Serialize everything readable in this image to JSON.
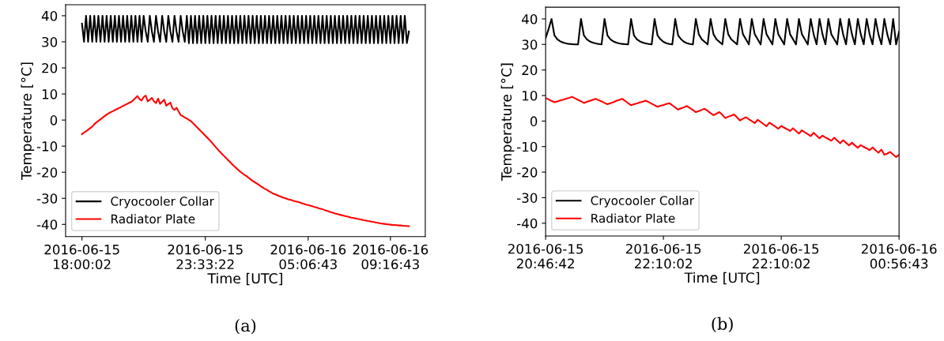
{
  "chart_data": [
    {
      "type": "line",
      "xlabel": "Time [UTC]",
      "ylabel": "Temperature [°C]",
      "annotations": [
        "(a)"
      ],
      "legend": "lower left",
      "grid": false,
      "ylim": [
        -44.7,
        44.2
      ],
      "yticks": [
        -40,
        -30,
        -20,
        -10,
        0,
        10,
        20,
        30,
        40
      ],
      "categories": [
        "2016-06-15\n18:00:02",
        null,
        null,
        null,
        null,
        null,
        null,
        null,
        null,
        null,
        null,
        null,
        null,
        null,
        null,
        null,
        null,
        null,
        null,
        null,
        null,
        null,
        null,
        null,
        null,
        null,
        null,
        null,
        null,
        null,
        null,
        null,
        null,
        null,
        null,
        null,
        null,
        null,
        null,
        null,
        null,
        null,
        null,
        null,
        null,
        null,
        null,
        null,
        null,
        null,
        null,
        null,
        null,
        null,
        null,
        null,
        null,
        null,
        null,
        null,
        "2016-06-15\n23:33:22",
        null,
        null,
        null,
        null,
        null,
        null,
        null,
        null,
        null,
        null,
        null,
        null,
        null,
        null,
        null,
        null,
        null,
        null,
        null,
        null,
        null,
        null,
        null,
        null,
        null,
        null,
        null,
        null,
        null,
        null,
        null,
        null,
        null,
        null,
        null,
        null,
        null,
        null,
        null,
        null,
        null,
        null,
        null,
        null,
        null,
        null,
        null,
        null,
        null,
        "2016-06-16\n05:06:43",
        null,
        null,
        null,
        null,
        null,
        null,
        null,
        null,
        null,
        null,
        null,
        null,
        null,
        null,
        null,
        null,
        null,
        null,
        null,
        null,
        null,
        null,
        null,
        null,
        null,
        null,
        null,
        null,
        null,
        null,
        null,
        null,
        null,
        null,
        null,
        null,
        null,
        null,
        null,
        "2016-06-16\n09:16:43",
        null,
        null,
        null,
        null,
        null,
        null,
        null,
        null,
        null
      ],
      "series": [
        {
          "name": "Cryocooler Collar",
          "color": "#000000",
          "values": [
            37,
            30,
            40,
            30,
            40,
            30,
            40,
            30,
            40,
            30,
            40,
            30,
            40,
            30,
            40,
            30,
            40,
            30,
            40,
            30,
            40,
            30,
            40,
            30,
            40,
            30,
            40,
            30,
            40,
            30,
            40,
            34,
            30,
            40,
            34,
            30,
            40,
            34,
            30,
            40,
            34,
            30,
            40,
            34,
            30,
            40,
            34,
            30,
            40,
            34,
            30,
            40,
            29.5,
            40,
            29.5,
            40,
            29.5,
            40,
            29.5,
            40,
            29.5,
            40,
            29.5,
            40,
            29.5,
            40,
            29.5,
            40,
            29.5,
            40,
            29.5,
            40,
            29.5,
            40,
            29.5,
            40,
            29.5,
            40,
            29.5,
            40,
            29.5,
            40,
            29.5,
            40,
            29.5,
            40,
            29.5,
            40,
            29.5,
            40,
            29.5,
            40,
            29.5,
            40,
            29.5,
            40,
            29.5,
            40,
            29.5,
            40,
            29.5,
            40,
            29.5,
            40,
            29.5,
            40,
            29.5,
            40,
            29.5,
            40,
            29.5,
            40,
            29.5,
            40,
            29.5,
            40,
            29.5,
            40,
            29.5,
            40,
            29.5,
            40,
            29.5,
            40,
            29.5,
            40,
            29.5,
            40,
            29.5,
            40,
            29.5,
            40,
            29.5,
            40,
            29.5,
            40,
            29.5,
            40,
            29.5,
            40,
            29.5,
            40,
            29.5,
            40,
            29.5,
            40,
            29.5,
            40,
            29.5,
            40,
            29.5,
            40,
            29.5,
            40,
            29.5,
            40,
            29.5,
            40,
            29.5,
            34
          ]
        },
        {
          "name": "Radiator Plate",
          "color": "#ff0000",
          "values": [
            -5.4,
            -4.8,
            -4.3,
            -3.7,
            -3.1,
            -2.5,
            -1.6,
            -0.9,
            -0.3,
            0.3,
            0.9,
            1.5,
            2.1,
            2.6,
            3.0,
            3.4,
            3.8,
            4.2,
            4.6,
            5.0,
            5.4,
            5.8,
            6.2,
            6.6,
            7.0,
            7.7,
            8.4,
            9.2,
            8.0,
            7.5,
            8.8,
            9.4,
            7.2,
            7.8,
            8.5,
            7.2,
            6.5,
            8.2,
            6.2,
            7.0,
            7.8,
            5.5,
            6.1,
            6.7,
            4.5,
            3.9,
            4.7,
            3.3,
            1.9,
            1.5,
            1.0,
            0.6,
            0.1,
            -0.4,
            -1.2,
            -2.0,
            -2.8,
            -3.6,
            -4.4,
            -5.2,
            -6.0,
            -6.8,
            -7.6,
            -8.5,
            -9.4,
            -10.3,
            -11.2,
            -12.1,
            -12.9,
            -13.7,
            -14.5,
            -15.3,
            -16.1,
            -16.9,
            -17.7,
            -18.4,
            -19.1,
            -19.8,
            -20.4,
            -21.0,
            -21.5,
            -22.1,
            -22.7,
            -23.3,
            -23.8,
            -24.3,
            -24.8,
            -25.4,
            -25.9,
            -26.4,
            -26.8,
            -27.3,
            -27.7,
            -28.2,
            -28.5,
            -28.8,
            -29.2,
            -29.5,
            -29.8,
            -30.0,
            -30.3,
            -30.5,
            -30.7,
            -31.0,
            -31.2,
            -31.4,
            -31.6,
            -31.9,
            -32.1,
            -32.4,
            -32.6,
            -32.8,
            -33.0,
            -33.3,
            -33.5,
            -33.8,
            -34.0,
            -34.2,
            -34.5,
            -34.8,
            -35.0,
            -35.3,
            -35.5,
            -35.8,
            -36.0,
            -36.2,
            -36.4,
            -36.6,
            -36.8,
            -37.0,
            -37.2,
            -37.4,
            -37.5,
            -37.7,
            -37.9,
            -38.0,
            -38.2,
            -38.4,
            -38.5,
            -38.7,
            -38.8,
            -39.0,
            -39.1,
            -39.3,
            -39.4,
            -39.6,
            -39.7,
            -39.8,
            -39.9,
            -40.0,
            -40.1,
            -40.2,
            -40.2,
            -40.3,
            -40.4,
            -40.4,
            -40.5,
            -40.6,
            -40.6,
            -40.7
          ]
        }
      ]
    },
    {
      "type": "line",
      "xlabel": "Time [UTC]",
      "ylabel": "Temperature [°C]",
      "annotations": [
        "(b)"
      ],
      "legend": "lower left",
      "grid": false,
      "ylim": [
        -45,
        44.6
      ],
      "yticks": [
        -40,
        -30,
        -20,
        -10,
        0,
        10,
        20,
        30,
        40
      ],
      "categories": [
        "2016-06-15\n20:46:42",
        null,
        null,
        null,
        null,
        null,
        null,
        null,
        null,
        null,
        null,
        null,
        null,
        null,
        null,
        null,
        null,
        null,
        null,
        null,
        null,
        null,
        null,
        null,
        null,
        null,
        null,
        null,
        null,
        null,
        null,
        null,
        null,
        null,
        null,
        null,
        null,
        null,
        null,
        null,
        "2016-06-15\n22:10:02",
        null,
        null,
        null,
        null,
        null,
        null,
        null,
        null,
        null,
        null,
        null,
        null,
        null,
        null,
        null,
        null,
        null,
        null,
        null,
        null,
        null,
        null,
        null,
        null,
        null,
        null,
        null,
        null,
        null,
        null,
        null,
        null,
        null,
        null,
        null,
        null,
        null,
        null,
        null,
        "2016-06-15\n22:10:02",
        null,
        null,
        null,
        null,
        null,
        null,
        null,
        null,
        null,
        null,
        null,
        null,
        null,
        null,
        null,
        null,
        null,
        null,
        null,
        null,
        null,
        null,
        null,
        null,
        null,
        null,
        null,
        null,
        null,
        null,
        null,
        null,
        null,
        null,
        null,
        null,
        null,
        null,
        null,
        "2016-06-16\n00:56:43"
      ],
      "series": [
        {
          "name": "Cryocooler Collar",
          "color": "#000000",
          "values": [
            32.5,
            36,
            40,
            33.5,
            32,
            31.2,
            30.7,
            30.4,
            30.2,
            30.1,
            30,
            30,
            40,
            33.5,
            32,
            31.2,
            30.7,
            30.4,
            30.2,
            30,
            40,
            33.5,
            32,
            31.2,
            30.7,
            30.4,
            30.2,
            30.1,
            30,
            40,
            33.5,
            32,
            31.2,
            30.7,
            30.4,
            30.2,
            30,
            40,
            33.5,
            32,
            31,
            30.5,
            30.2,
            30,
            40,
            33.5,
            32,
            31,
            30.5,
            30.2,
            30,
            40,
            34,
            32,
            31,
            30,
            40,
            34,
            32,
            31,
            30,
            40,
            34,
            32,
            31,
            30,
            40,
            34,
            32,
            30,
            40,
            34,
            32,
            30,
            40,
            34,
            32,
            30,
            40,
            34,
            32,
            30,
            40,
            34,
            32,
            30,
            40,
            34,
            32,
            30,
            40,
            34,
            30,
            40,
            34,
            30,
            40,
            34,
            32,
            30,
            40,
            34,
            30,
            40,
            34,
            30,
            40,
            34,
            30,
            40,
            34,
            30,
            40,
            34,
            30,
            40,
            34,
            30,
            40,
            30,
            35
          ]
        },
        {
          "name": "Radiator Plate",
          "color": "#ff0000",
          "values": [
            9.0,
            8.5,
            7.9,
            7.4,
            7.7,
            8.1,
            8.4,
            8.8,
            9.1,
            9.5,
            8.9,
            8.3,
            7.7,
            7.1,
            7.5,
            7.9,
            8.3,
            8.7,
            8.2,
            7.7,
            7.1,
            6.6,
            7.0,
            7.4,
            7.9,
            8.3,
            8.7,
            7.9,
            7.0,
            6.2,
            6.6,
            6.9,
            7.3,
            7.6,
            8.0,
            7.4,
            6.8,
            6.2,
            5.6,
            6.0,
            6.3,
            6.7,
            7.0,
            6.2,
            5.3,
            4.5,
            5.0,
            5.4,
            5.9,
            5.1,
            4.3,
            3.5,
            3.9,
            4.4,
            4.8,
            4.0,
            3.1,
            2.3,
            2.9,
            3.5,
            2.4,
            1.2,
            1.7,
            2.1,
            2.6,
            1.4,
            0.2,
            0.9,
            1.5,
            0.7,
            0.0,
            -0.8,
            0.5,
            -0.3,
            -1.2,
            -2.0,
            -0.6,
            -1.4,
            -2.2,
            -3.0,
            -1.9,
            -2.6,
            -3.2,
            -3.9,
            -2.8,
            -3.9,
            -4.9,
            -3.6,
            -4.4,
            -5.1,
            -5.9,
            -4.6,
            -5.7,
            -6.8,
            -5.7,
            -6.4,
            -7.0,
            -7.7,
            -6.5,
            -7.6,
            -8.7,
            -7.5,
            -8.5,
            -9.5,
            -8.5,
            -9.5,
            -10.5,
            -9.4,
            -10.1,
            -10.7,
            -11.4,
            -10.3,
            -11.4,
            -12.4,
            -11.2,
            -13.2,
            -12.7,
            -12.1,
            -13.1,
            -14.1,
            -13.3
          ]
        }
      ]
    }
  ]
}
